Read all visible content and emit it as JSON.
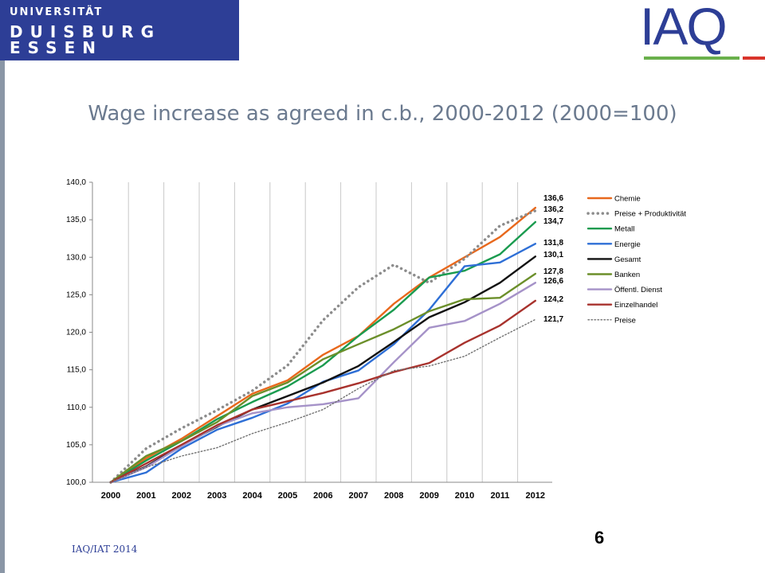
{
  "header": {
    "logo_line1": "UNIVERSITÄT",
    "logo_line2": "DUISBURG",
    "logo_line3": "ESSEN",
    "iaq_logo": "IAQ"
  },
  "title": "Wage increase as agreed in c.b., 2000-2012 (2000=100)",
  "footer": {
    "source": "IAQ/IAT 2014",
    "page": "6"
  },
  "chart_data": {
    "type": "line",
    "title": "",
    "xlabel": "",
    "ylabel": "",
    "x": [
      "2000",
      "2001",
      "2002",
      "2003",
      "2004",
      "2005",
      "2006",
      "2007",
      "2008",
      "2009",
      "2010",
      "2011",
      "2012"
    ],
    "ylim": [
      100,
      140
    ],
    "yticks": [
      "100,0",
      "105,0",
      "110,0",
      "115,0",
      "120,0",
      "125,0",
      "130,0",
      "135,0",
      "140,0"
    ],
    "grid": "vertical",
    "legend": "right",
    "series": [
      {
        "name": "Chemie",
        "color": "#e8681c",
        "style": "solid",
        "end_label": "136,6",
        "values": [
          100,
          103.2,
          105.8,
          108.8,
          111.8,
          113.6,
          117.0,
          119.5,
          123.8,
          127.3,
          130.0,
          132.7,
          136.6
        ]
      },
      {
        "name": "Preise + Produktivität",
        "color": "#8c8c8c",
        "style": "dots",
        "end_label": "136,2",
        "values": [
          100,
          104.5,
          107.2,
          109.6,
          112.2,
          115.6,
          121.6,
          126.0,
          129.0,
          126.6,
          129.8,
          134.2,
          136.2
        ]
      },
      {
        "name": "Metall",
        "color": "#1a9b4f",
        "style": "solid",
        "end_label": "134,7",
        "values": [
          100,
          102.9,
          105.5,
          108.4,
          110.7,
          112.8,
          115.6,
          119.5,
          123.0,
          127.3,
          128.2,
          130.4,
          134.7
        ]
      },
      {
        "name": "Energie",
        "color": "#2e6fd6",
        "style": "solid",
        "end_label": "131,8",
        "values": [
          100,
          101.3,
          104.5,
          107.0,
          108.6,
          110.5,
          113.4,
          114.9,
          118.4,
          123.0,
          128.8,
          129.3,
          131.8
        ]
      },
      {
        "name": "Gesamt",
        "color": "#111111",
        "style": "solid",
        "end_label": "130,1",
        "values": [
          100,
          102.1,
          104.9,
          107.4,
          109.7,
          111.5,
          113.3,
          115.5,
          118.7,
          122.0,
          124.0,
          126.6,
          130.1
        ]
      },
      {
        "name": "Banken",
        "color": "#6b8f2a",
        "style": "solid",
        "end_label": "127,8",
        "values": [
          100,
          103.5,
          105.5,
          108.0,
          111.5,
          113.3,
          116.4,
          118.4,
          120.4,
          122.8,
          124.4,
          124.6,
          127.8
        ]
      },
      {
        "name": "Öffentl. Dienst",
        "color": "#a592c8",
        "style": "solid",
        "end_label": "126,6",
        "values": [
          100,
          102.0,
          104.8,
          107.5,
          109.2,
          110.0,
          110.4,
          111.2,
          116.0,
          120.6,
          121.5,
          123.8,
          126.6
        ]
      },
      {
        "name": "Einzelhandel",
        "color": "#a8322d",
        "style": "solid",
        "end_label": "124,2",
        "values": [
          100,
          102.5,
          105.0,
          107.6,
          109.7,
          110.8,
          111.9,
          113.2,
          114.7,
          115.9,
          118.6,
          120.9,
          124.2
        ]
      },
      {
        "name": "Preise",
        "color": "#707070",
        "style": "fine-dots",
        "end_label": "121,7",
        "values": [
          100,
          102.0,
          103.5,
          104.6,
          106.5,
          108.0,
          109.7,
          112.5,
          114.9,
          115.5,
          116.8,
          119.3,
          121.7
        ]
      }
    ]
  }
}
